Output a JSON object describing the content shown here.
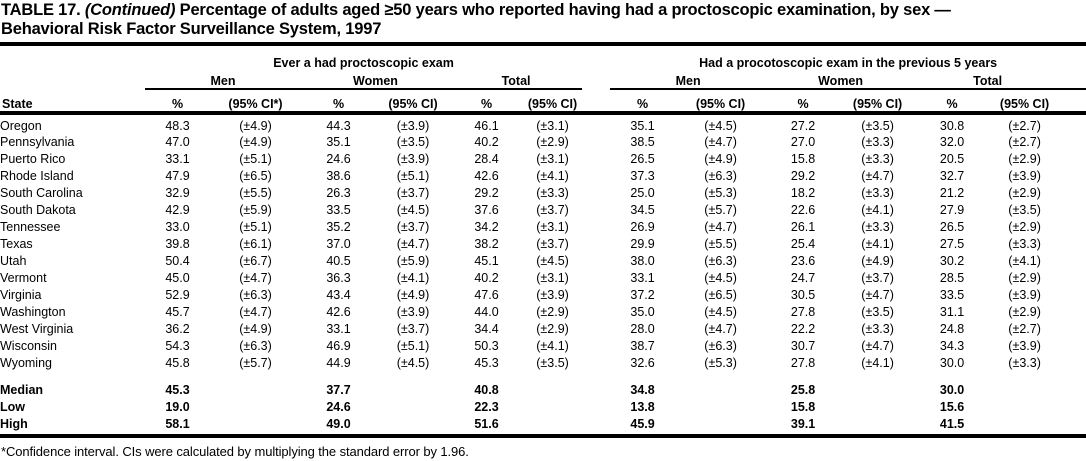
{
  "title": {
    "label": "TABLE 17.",
    "continued": "(Continued)",
    "line1_rest": "Percentage of adults aged ≥50 years who reported having had a proctoscopic examination, by sex —",
    "line2": "Behavioral Risk Factor Surveillance System, 1997"
  },
  "table": {
    "row_header": "State",
    "groups": [
      {
        "label": "Ever a had proctoscopic exam",
        "subgroups": [
          "Men",
          "Women",
          "Total"
        ],
        "col_headers": [
          "%",
          "(95% CI*)",
          "%",
          "(95% CI)",
          "%",
          "(95% CI)"
        ]
      },
      {
        "label": "Had a procotoscopic exam in the previous 5 years",
        "subgroups": [
          "Men",
          "Women",
          "Total"
        ],
        "col_headers": [
          "%",
          "(95% CI)",
          "%",
          "(95% CI)",
          "%",
          "(95% CI)"
        ]
      }
    ],
    "rows": [
      {
        "state": "Oregon",
        "values": [
          "48.3",
          "(±4.9)",
          "44.3",
          "(±3.9)",
          "46.1",
          "(±3.1)",
          "35.1",
          "(±4.5)",
          "27.2",
          "(±3.5)",
          "30.8",
          "(±2.7)"
        ]
      },
      {
        "state": "Pennsylvania",
        "values": [
          "47.0",
          "(±4.9)",
          "35.1",
          "(±3.5)",
          "40.2",
          "(±2.9)",
          "38.5",
          "(±4.7)",
          "27.0",
          "(±3.3)",
          "32.0",
          "(±2.7)"
        ]
      },
      {
        "state": "Puerto Rico",
        "values": [
          "33.1",
          "(±5.1)",
          "24.6",
          "(±3.9)",
          "28.4",
          "(±3.1)",
          "26.5",
          "(±4.9)",
          "15.8",
          "(±3.3)",
          "20.5",
          "(±2.9)"
        ]
      },
      {
        "state": "Rhode Island",
        "values": [
          "47.9",
          "(±6.5)",
          "38.6",
          "(±5.1)",
          "42.6",
          "(±4.1)",
          "37.3",
          "(±6.3)",
          "29.2",
          "(±4.7)",
          "32.7",
          "(±3.9)"
        ]
      },
      {
        "state": "South Carolina",
        "values": [
          "32.9",
          "(±5.5)",
          "26.3",
          "(±3.7)",
          "29.2",
          "(±3.3)",
          "25.0",
          "(±5.3)",
          "18.2",
          "(±3.3)",
          "21.2",
          "(±2.9)"
        ]
      },
      {
        "state": "South Dakota",
        "values": [
          "42.9",
          "(±5.9)",
          "33.5",
          "(±4.5)",
          "37.6",
          "(±3.7)",
          "34.5",
          "(±5.7)",
          "22.6",
          "(±4.1)",
          "27.9",
          "(±3.5)"
        ]
      },
      {
        "state": "Tennessee",
        "values": [
          "33.0",
          "(±5.1)",
          "35.2",
          "(±3.7)",
          "34.2",
          "(±3.1)",
          "26.9",
          "(±4.7)",
          "26.1",
          "(±3.3)",
          "26.5",
          "(±2.9)"
        ]
      },
      {
        "state": "Texas",
        "values": [
          "39.8",
          "(±6.1)",
          "37.0",
          "(±4.7)",
          "38.2",
          "(±3.7)",
          "29.9",
          "(±5.5)",
          "25.4",
          "(±4.1)",
          "27.5",
          "(±3.3)"
        ]
      },
      {
        "state": "Utah",
        "values": [
          "50.4",
          "(±6.7)",
          "40.5",
          "(±5.9)",
          "45.1",
          "(±4.5)",
          "38.0",
          "(±6.3)",
          "23.6",
          "(±4.9)",
          "30.2",
          "(±4.1)"
        ]
      },
      {
        "state": "Vermont",
        "values": [
          "45.0",
          "(±4.7)",
          "36.3",
          "(±4.1)",
          "40.2",
          "(±3.1)",
          "33.1",
          "(±4.5)",
          "24.7",
          "(±3.7)",
          "28.5",
          "(±2.9)"
        ]
      },
      {
        "state": "Virginia",
        "values": [
          "52.9",
          "(±6.3)",
          "43.4",
          "(±4.9)",
          "47.6",
          "(±3.9)",
          "37.2",
          "(±6.5)",
          "30.5",
          "(±4.7)",
          "33.5",
          "(±3.9)"
        ]
      },
      {
        "state": "Washington",
        "values": [
          "45.7",
          "(±4.7)",
          "42.6",
          "(±3.9)",
          "44.0",
          "(±2.9)",
          "35.0",
          "(±4.5)",
          "27.8",
          "(±3.5)",
          "31.1",
          "(±2.9)"
        ]
      },
      {
        "state": "West Virginia",
        "values": [
          "36.2",
          "(±4.9)",
          "33.1",
          "(±3.7)",
          "34.4",
          "(±2.9)",
          "28.0",
          "(±4.7)",
          "22.2",
          "(±3.3)",
          "24.8",
          "(±2.7)"
        ]
      },
      {
        "state": "Wisconsin",
        "values": [
          "54.3",
          "(±6.3)",
          "46.9",
          "(±5.1)",
          "50.3",
          "(±4.1)",
          "38.7",
          "(±6.3)",
          "30.7",
          "(±4.7)",
          "34.3",
          "(±3.9)"
        ]
      },
      {
        "state": "Wyoming",
        "values": [
          "45.8",
          "(±5.7)",
          "44.9",
          "(±4.5)",
          "45.3",
          "(±3.5)",
          "32.6",
          "(±5.3)",
          "27.8",
          "(±4.1)",
          "30.0",
          "(±3.3)"
        ]
      }
    ],
    "summary_rows": [
      {
        "label": "Median",
        "values": [
          "45.3",
          "37.7",
          "40.8",
          "34.8",
          "25.8",
          "30.0"
        ]
      },
      {
        "label": "Low",
        "values": [
          "19.0",
          "24.6",
          "22.3",
          "13.8",
          "15.8",
          "15.6"
        ]
      },
      {
        "label": "High",
        "values": [
          "58.1",
          "49.0",
          "51.6",
          "45.9",
          "39.1",
          "41.5"
        ]
      }
    ]
  },
  "footnote": "*Confidence interval. CIs were calculated by multiplying the standard error by 1.96."
}
